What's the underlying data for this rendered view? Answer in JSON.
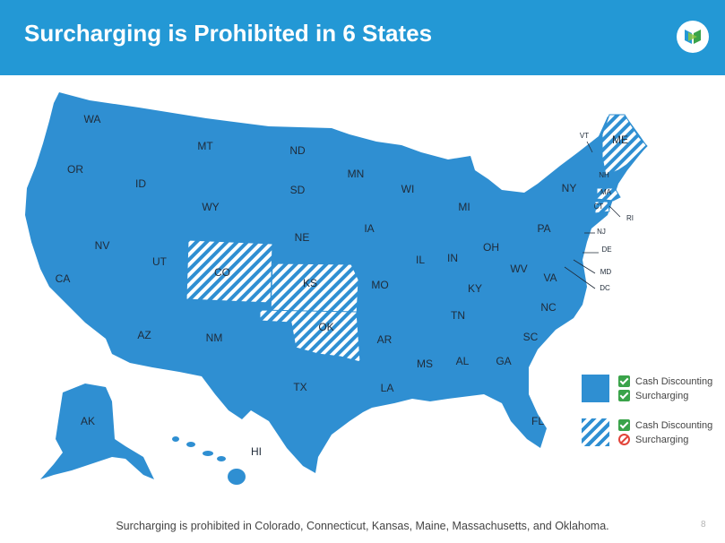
{
  "header": {
    "title": "Surcharging is Prohibited in 6 States",
    "logo_icon": "company-logo-icon",
    "background_color": "#2398d5"
  },
  "map": {
    "fill_color": "#2f8fd2",
    "state_labels": [
      "WA",
      "OR",
      "CA",
      "ID",
      "NV",
      "MT",
      "WY",
      "UT",
      "AZ",
      "CO",
      "NM",
      "ND",
      "SD",
      "NE",
      "KS",
      "OK",
      "TX",
      "MN",
      "IA",
      "MO",
      "AR",
      "LA",
      "WI",
      "IL",
      "MI",
      "IN",
      "OH",
      "KY",
      "TN",
      "MS",
      "AL",
      "GA",
      "FL",
      "SC",
      "NC",
      "VA",
      "WV",
      "PA",
      "NY",
      "VT",
      "ME",
      "NH",
      "MA",
      "CT",
      "RI",
      "NJ",
      "DE",
      "MD",
      "DC",
      "AK",
      "HI"
    ],
    "prohibited_states": [
      "CO",
      "KS",
      "OK",
      "ME",
      "MA",
      "CT"
    ]
  },
  "legend": {
    "items": [
      {
        "pattern": "solid",
        "rows": [
          {
            "icon": "check-icon",
            "label": "Cash Discounting"
          },
          {
            "icon": "check-icon",
            "label": "Surcharging"
          }
        ]
      },
      {
        "pattern": "hatched",
        "rows": [
          {
            "icon": "check-icon",
            "label": "Cash Discounting"
          },
          {
            "icon": "prohibited-icon",
            "label": "Surcharging"
          }
        ]
      }
    ]
  },
  "footer": {
    "text": "Surcharging is prohibited in Colorado, Connecticut, Kansas, Maine, Massachusetts, and Oklahoma.",
    "page_number": "8"
  }
}
